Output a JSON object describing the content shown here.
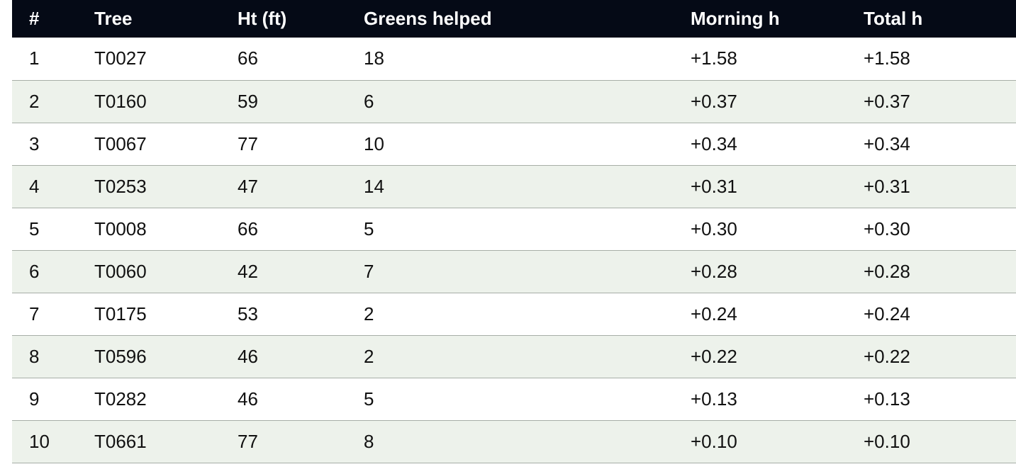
{
  "chart_data": {
    "type": "table",
    "columns": [
      "#",
      "Tree",
      "Ht (ft)",
      "Greens helped",
      "Morning h",
      "Total h"
    ],
    "rows": [
      [
        "1",
        "T0027",
        "66",
        "18",
        "+1.58",
        "+1.58"
      ],
      [
        "2",
        "T0160",
        "59",
        "6",
        "+0.37",
        "+0.37"
      ],
      [
        "3",
        "T0067",
        "77",
        "10",
        "+0.34",
        "+0.34"
      ],
      [
        "4",
        "T0253",
        "47",
        "14",
        "+0.31",
        "+0.31"
      ],
      [
        "5",
        "T0008",
        "66",
        "5",
        "+0.30",
        "+0.30"
      ],
      [
        "6",
        "T0060",
        "42",
        "7",
        "+0.28",
        "+0.28"
      ],
      [
        "7",
        "T0175",
        "53",
        "2",
        "+0.24",
        "+0.24"
      ],
      [
        "8",
        "T0596",
        "46",
        "2",
        "+0.22",
        "+0.22"
      ],
      [
        "9",
        "T0282",
        "46",
        "5",
        "+0.13",
        "+0.13"
      ],
      [
        "10",
        "T0661",
        "77",
        "8",
        "+0.10",
        "+0.10"
      ]
    ]
  },
  "colors": {
    "header_bg": "#050a16",
    "header_text": "#ffffff",
    "row_alt_bg": "#edf2eb",
    "row_bg": "#ffffff",
    "divider": "#a7aea7"
  }
}
